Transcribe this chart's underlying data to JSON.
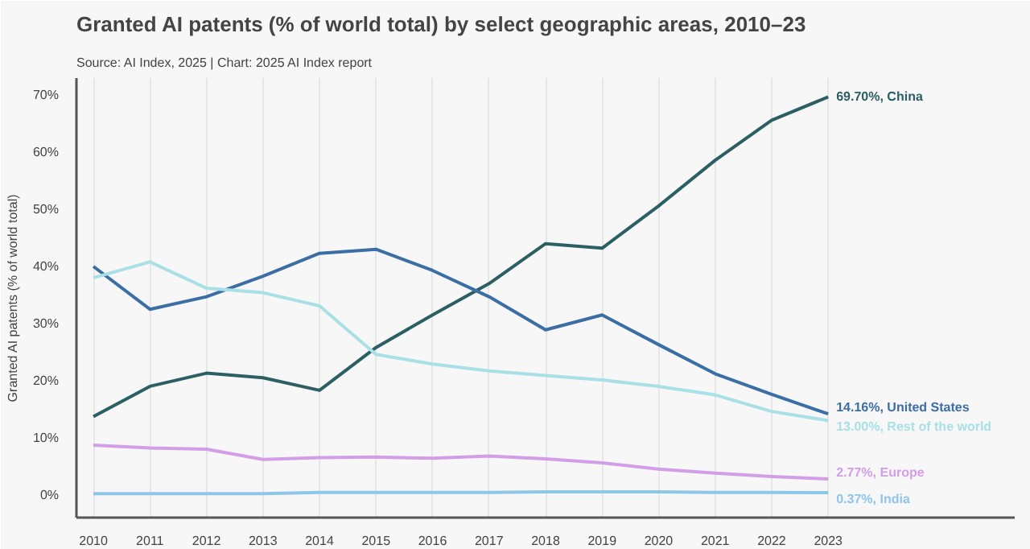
{
  "chart_data": {
    "type": "line",
    "title": "Granted AI patents (% of world total) by select geographic areas, 2010–23",
    "subtitle": "Source: AI Index, 2025 | Chart: 2025 AI Index report",
    "ylabel": "Granted AI patents (% of world total)",
    "x": [
      2010,
      2011,
      2012,
      2013,
      2014,
      2015,
      2016,
      2017,
      2018,
      2019,
      2020,
      2021,
      2022,
      2023
    ],
    "xlim": [
      2009.7,
      2026.3
    ],
    "xticks": [
      {
        "value": 2010,
        "label": "2010"
      },
      {
        "value": 2011,
        "label": "2011"
      },
      {
        "value": 2012,
        "label": "2012"
      },
      {
        "value": 2013,
        "label": "2013"
      },
      {
        "value": 2014,
        "label": "2014"
      },
      {
        "value": 2015,
        "label": "2015"
      },
      {
        "value": 2016,
        "label": "2016"
      },
      {
        "value": 2017,
        "label": "2017"
      },
      {
        "value": 2018,
        "label": "2018"
      },
      {
        "value": 2019,
        "label": "2019"
      },
      {
        "value": 2020,
        "label": "2020"
      },
      {
        "value": 2021,
        "label": "2021"
      },
      {
        "value": 2022,
        "label": "2022"
      },
      {
        "value": 2023,
        "label": "2023"
      }
    ],
    "ylim": [
      -4,
      73
    ],
    "yticks": [
      {
        "value": 0,
        "label": "0%"
      },
      {
        "value": 10,
        "label": "10%"
      },
      {
        "value": 20,
        "label": "20%"
      },
      {
        "value": 30,
        "label": "30%"
      },
      {
        "value": 40,
        "label": "40%"
      },
      {
        "value": 50,
        "label": "50%"
      },
      {
        "value": 60,
        "label": "60%"
      },
      {
        "value": 70,
        "label": "70%"
      }
    ],
    "grid": "x",
    "marker": "none",
    "line_style": "solid",
    "series": [
      {
        "name": "China",
        "color": "#2b5f63",
        "values": [
          13.7,
          19,
          21.3,
          20.5,
          18.3,
          25.8,
          31.5,
          37,
          44,
          43.2,
          50.6,
          58.6,
          65.6,
          69.7
        ],
        "value_labels": [
          null,
          null,
          null,
          null,
          null,
          null,
          null,
          null,
          null,
          null,
          null,
          null,
          null,
          "69.70%,"
        ]
      },
      {
        "name": "United States",
        "color": "#3a6ea5",
        "values": [
          40,
          32.5,
          34.7,
          38.3,
          42.3,
          43,
          39.3,
          34.7,
          28.9,
          31.5,
          26.3,
          21.2,
          17.6,
          14.16
        ],
        "value_labels": [
          null,
          null,
          null,
          null,
          null,
          null,
          null,
          null,
          null,
          null,
          null,
          null,
          null,
          "14.16%,"
        ]
      },
      {
        "name": "Rest of the world",
        "color": "#a8e0e6",
        "values": [
          38,
          40.8,
          36.2,
          35.4,
          33.1,
          24.6,
          22.9,
          21.7,
          20.9,
          20.1,
          19,
          17.5,
          14.6,
          13.0
        ],
        "value_labels": [
          null,
          null,
          null,
          null,
          null,
          null,
          null,
          null,
          null,
          null,
          null,
          null,
          null,
          "13.00%,"
        ]
      },
      {
        "name": "Europe",
        "color": "#d29ee8",
        "values": [
          8.7,
          8.2,
          8.0,
          6.2,
          6.5,
          6.6,
          6.4,
          6.8,
          6.3,
          5.6,
          4.5,
          3.8,
          3.2,
          2.77
        ],
        "value_labels": [
          null,
          null,
          null,
          null,
          null,
          null,
          null,
          null,
          null,
          null,
          null,
          null,
          null,
          "2.77%,"
        ]
      },
      {
        "name": "India",
        "color": "#8ec6ea",
        "values": [
          0.2,
          0.2,
          0.2,
          0.2,
          0.4,
          0.4,
          0.4,
          0.4,
          0.5,
          0.5,
          0.5,
          0.4,
          0.4,
          0.37
        ],
        "value_labels": [
          null,
          null,
          null,
          null,
          null,
          null,
          null,
          null,
          null,
          null,
          null,
          null,
          null,
          "0.37%,"
        ]
      }
    ]
  }
}
